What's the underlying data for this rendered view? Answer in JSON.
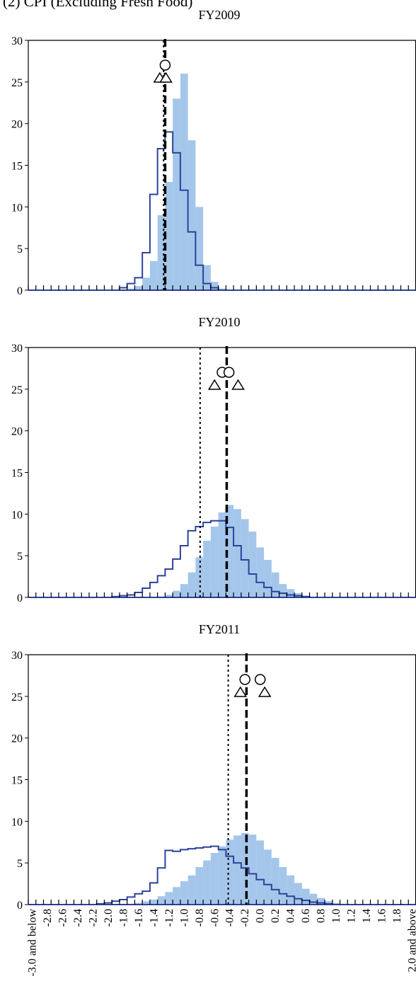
{
  "figure_title": "(2) CPI (Excluding Fresh Food)",
  "colors": {
    "bar_fill": "#a4c6ea",
    "outline": "#2c439a",
    "axis": "#000000"
  },
  "chart_data": [
    {
      "type": "bar",
      "title": "FY2009",
      "ylim": [
        0,
        30
      ],
      "yticks": [
        0,
        5,
        10,
        15,
        20,
        25,
        30
      ],
      "categories": [
        "-3.0 and below",
        "-2.9",
        "-2.8",
        "-2.7",
        "-2.6",
        "-2.5",
        "-2.4",
        "-2.3",
        "-2.2",
        "-2.1",
        "-2.0",
        "-1.9",
        "-1.8",
        "-1.7",
        "-1.6",
        "-1.5",
        "-1.4",
        "-1.3",
        "-1.2",
        "-1.1",
        "-1.0",
        "-0.9",
        "-0.8",
        "-0.7",
        "-0.6",
        "-0.5",
        "-0.4",
        "-0.3",
        "-0.2",
        "-0.1",
        "0.0",
        "0.1",
        "0.2",
        "0.3",
        "0.4",
        "0.5",
        "0.6",
        "0.7",
        "0.8",
        "0.9",
        "1.0",
        "1.1",
        "1.2",
        "1.3",
        "1.4",
        "1.5",
        "1.6",
        "1.7",
        "1.8",
        "1.9",
        "2.0 and above"
      ],
      "series": [
        {
          "values": [
            0,
            0,
            0,
            0,
            0,
            0,
            0,
            0,
            0,
            0,
            0,
            0,
            0,
            0.2,
            0.5,
            1.5,
            3.5,
            9,
            13,
            23,
            26,
            18,
            10,
            3,
            1,
            0.2,
            0,
            0,
            0,
            0,
            0,
            0,
            0,
            0,
            0,
            0,
            0,
            0,
            0,
            0,
            0,
            0,
            0,
            0,
            0,
            0,
            0,
            0,
            0,
            0,
            0
          ]
        },
        {
          "values": [
            0,
            0,
            0,
            0,
            0,
            0,
            0,
            0,
            0,
            0,
            0,
            0,
            0.3,
            0.8,
            1.5,
            4.5,
            11.5,
            17,
            19,
            16.5,
            12,
            7,
            3,
            0.8,
            0.3,
            0,
            0,
            0,
            0,
            0,
            0,
            0,
            0,
            0,
            0,
            0,
            0,
            0,
            0,
            0,
            0,
            0,
            0,
            0,
            0,
            0,
            0,
            0,
            0,
            0,
            0
          ]
        }
      ],
      "markers": {
        "circles_x": [
          -1.25
        ],
        "triangles_x": [
          -1.32,
          -1.24
        ],
        "dotted_line_x": -1.27,
        "dashed_line_x": -1.25
      }
    },
    {
      "type": "bar",
      "title": "FY2010",
      "ylim": [
        0,
        30
      ],
      "yticks": [
        0,
        5,
        10,
        15,
        20,
        25,
        30
      ],
      "categories": [
        "-3.0 and below",
        "-2.9",
        "-2.8",
        "-2.7",
        "-2.6",
        "-2.5",
        "-2.4",
        "-2.3",
        "-2.2",
        "-2.1",
        "-2.0",
        "-1.9",
        "-1.8",
        "-1.7",
        "-1.6",
        "-1.5",
        "-1.4",
        "-1.3",
        "-1.2",
        "-1.1",
        "-1.0",
        "-0.9",
        "-0.8",
        "-0.7",
        "-0.6",
        "-0.5",
        "-0.4",
        "-0.3",
        "-0.2",
        "-0.1",
        "0.0",
        "0.1",
        "0.2",
        "0.3",
        "0.4",
        "0.5",
        "0.6",
        "0.7",
        "0.8",
        "0.9",
        "1.0",
        "1.1",
        "1.2",
        "1.3",
        "1.4",
        "1.5",
        "1.6",
        "1.7",
        "1.8",
        "1.9",
        "2.0 and above"
      ],
      "series": [
        {
          "values": [
            0,
            0,
            0,
            0,
            0,
            0,
            0,
            0,
            0,
            0,
            0,
            0,
            0,
            0,
            0,
            0,
            0,
            0.1,
            0.3,
            0.8,
            1.6,
            3,
            4.8,
            6.8,
            8.5,
            10.2,
            11.1,
            10.6,
            9.4,
            7.9,
            6,
            4.5,
            3,
            1.6,
            1,
            0.5,
            0.2,
            0,
            0,
            0,
            0,
            0,
            0,
            0,
            0,
            0,
            0,
            0,
            0,
            0,
            0
          ]
        },
        {
          "values": [
            0,
            0,
            0,
            0,
            0,
            0,
            0,
            0,
            0,
            0,
            0,
            0.1,
            0.2,
            0.3,
            0.6,
            1.1,
            1.8,
            2.6,
            3.4,
            4.6,
            6.2,
            8,
            8.5,
            9,
            9.2,
            9.2,
            8.4,
            6.2,
            4.5,
            2.8,
            1.8,
            1.2,
            0.7,
            0.5,
            0.3,
            0.2,
            0.1,
            0,
            0,
            0,
            0,
            0,
            0,
            0,
            0,
            0,
            0,
            0,
            0,
            0,
            0
          ]
        }
      ],
      "markers": {
        "circles_x": [
          -0.5,
          -0.41
        ],
        "triangles_x": [
          -0.6,
          -0.29
        ],
        "dotted_line_x": -0.79,
        "dashed_line_x": -0.44
      }
    },
    {
      "type": "bar",
      "title": "FY2011",
      "ylim": [
        0,
        30
      ],
      "yticks": [
        0,
        5,
        10,
        15,
        20,
        25,
        30
      ],
      "categories": [
        "-3.0 and below",
        "-2.9",
        "-2.8",
        "-2.7",
        "-2.6",
        "-2.5",
        "-2.4",
        "-2.3",
        "-2.2",
        "-2.1",
        "-2.0",
        "-1.9",
        "-1.8",
        "-1.7",
        "-1.6",
        "-1.5",
        "-1.4",
        "-1.3",
        "-1.2",
        "-1.1",
        "-1.0",
        "-0.9",
        "-0.8",
        "-0.7",
        "-0.6",
        "-0.5",
        "-0.4",
        "-0.3",
        "-0.2",
        "-0.1",
        "0.0",
        "0.1",
        "0.2",
        "0.3",
        "0.4",
        "0.5",
        "0.6",
        "0.7",
        "0.8",
        "0.9",
        "1.0",
        "1.1",
        "1.2",
        "1.3",
        "1.4",
        "1.5",
        "1.6",
        "1.7",
        "1.8",
        "1.9",
        "2.0 and above"
      ],
      "series": [
        {
          "values": [
            0,
            0,
            0,
            0,
            0,
            0,
            0,
            0,
            0,
            0,
            0,
            0,
            0,
            0.1,
            0.2,
            0.4,
            0.6,
            1,
            1.5,
            2.1,
            2.8,
            3.5,
            4.5,
            5.3,
            6.2,
            7,
            7.8,
            8.3,
            8.6,
            8.4,
            7.7,
            6.6,
            5.6,
            4.5,
            3.5,
            2.6,
            1.9,
            1.3,
            0.8,
            0.4,
            0.2,
            0.1,
            0,
            0,
            0,
            0,
            0,
            0,
            0,
            0,
            0
          ]
        },
        {
          "values": [
            0,
            0,
            0,
            0,
            0,
            0,
            0,
            0,
            0,
            0.1,
            0.2,
            0.4,
            0.6,
            0.9,
            1.3,
            1.6,
            2.6,
            4.4,
            6.5,
            6.4,
            6.6,
            6.7,
            6.8,
            6.9,
            7,
            6.6,
            5.8,
            5,
            4.4,
            3.7,
            3,
            2.4,
            1.8,
            1.3,
            1,
            0.7,
            0.5,
            0.3,
            0.2,
            0.1,
            0,
            0,
            0,
            0,
            0,
            0,
            0,
            0,
            0,
            0,
            0
          ]
        }
      ],
      "markers": {
        "circles_x": [
          -0.2,
          0.0
        ],
        "triangles_x": [
          -0.26,
          0.06
        ],
        "dotted_line_x": -0.42,
        "dashed_line_x": -0.18
      }
    }
  ],
  "x_tick_labels": [
    "-3.0 and below",
    "-2.8",
    "-2.6",
    "-2.4",
    "-2.2",
    "-2.0",
    "-1.8",
    "-1.6",
    "-1.4",
    "-1.2",
    "-1.0",
    "-0.8",
    "-0.6",
    "-0.4",
    "-0.2",
    "0.0",
    "0.2",
    "0.4",
    "0.6",
    "0.8",
    "1.0",
    "1.2",
    "1.4",
    "1.6",
    "1.8",
    "2.0 and above"
  ]
}
